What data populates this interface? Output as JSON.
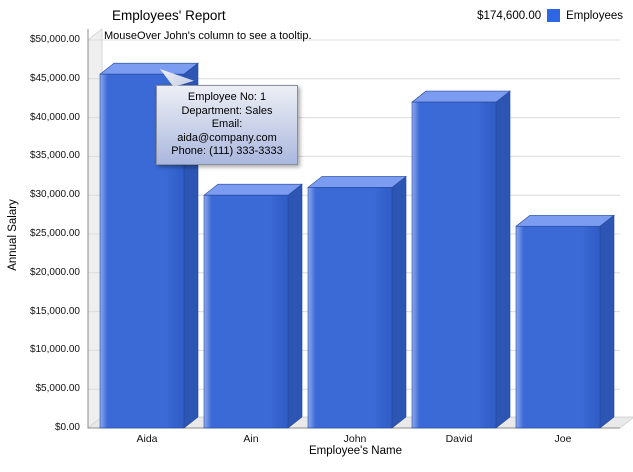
{
  "header": {
    "title": "Employees' Report",
    "legend_total": "$174,600.00",
    "legend_label": "Employees"
  },
  "annotation": "MouseOver John's column to see a tooltip.",
  "tooltip": {
    "lines": [
      "Employee No: 1",
      "Department: Sales",
      "Email:",
      "aida@company.com",
      "Phone: (111) 333-3333"
    ]
  },
  "chart_data": {
    "type": "bar",
    "style": "3d-column",
    "title": "Employees' Report",
    "categories": [
      "Aida",
      "Ain",
      "John",
      "David",
      "Joe"
    ],
    "series": [
      {
        "name": "Employees",
        "values": [
          45600,
          30000,
          31000,
          42000,
          26000
        ]
      }
    ],
    "values": [
      45600,
      30000,
      31000,
      42000,
      26000
    ],
    "total_label": "$174,600.00",
    "xlabel": "Employee's Name",
    "ylabel": "Annual Salary",
    "ylim": [
      0,
      50000
    ],
    "ytick_step": 5000,
    "ytick_format": "currency-usd-2dp",
    "grid": true,
    "legend_position": "top-right"
  },
  "colors": {
    "bar_front": "#3b69d6",
    "bar_front_hi": "#8fa9ef",
    "bar_front_lo": "#2f5cc4",
    "bar_top": "#7b9cf0",
    "bar_side": "#2d55b4",
    "bar_edge": "#24489c",
    "legend_swatch": "#2f66e3",
    "gridline": "#dcdcdc",
    "axis": "#8c8c8c",
    "wall": "#efefef",
    "floor": "#e9e9e9",
    "wall_edge": "#d5d5d5"
  }
}
